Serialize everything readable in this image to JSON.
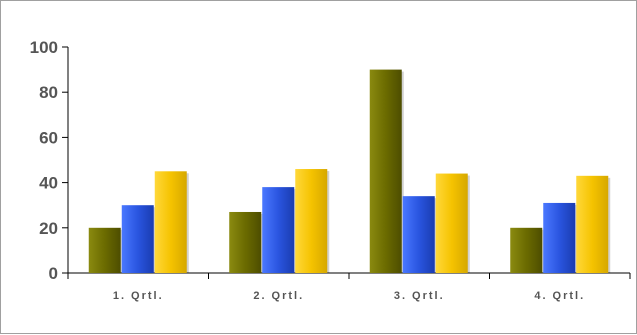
{
  "chart_data": {
    "type": "bar",
    "categories": [
      "1. Qrtl.",
      "2. Qrtl.",
      "3. Qrtl.",
      "4. Qrtl."
    ],
    "series": [
      {
        "values": [
          20,
          27,
          90,
          20
        ],
        "color": "#6b6b00"
      },
      {
        "values": [
          30,
          38,
          34,
          31
        ],
        "color": "#2a55e0"
      },
      {
        "values": [
          45,
          46,
          44,
          43
        ],
        "color": "#f5c300"
      }
    ],
    "ylim": [
      0,
      100
    ],
    "yticks": [
      0,
      20,
      40,
      60,
      80,
      100
    ],
    "grid": false,
    "legend": "none"
  }
}
